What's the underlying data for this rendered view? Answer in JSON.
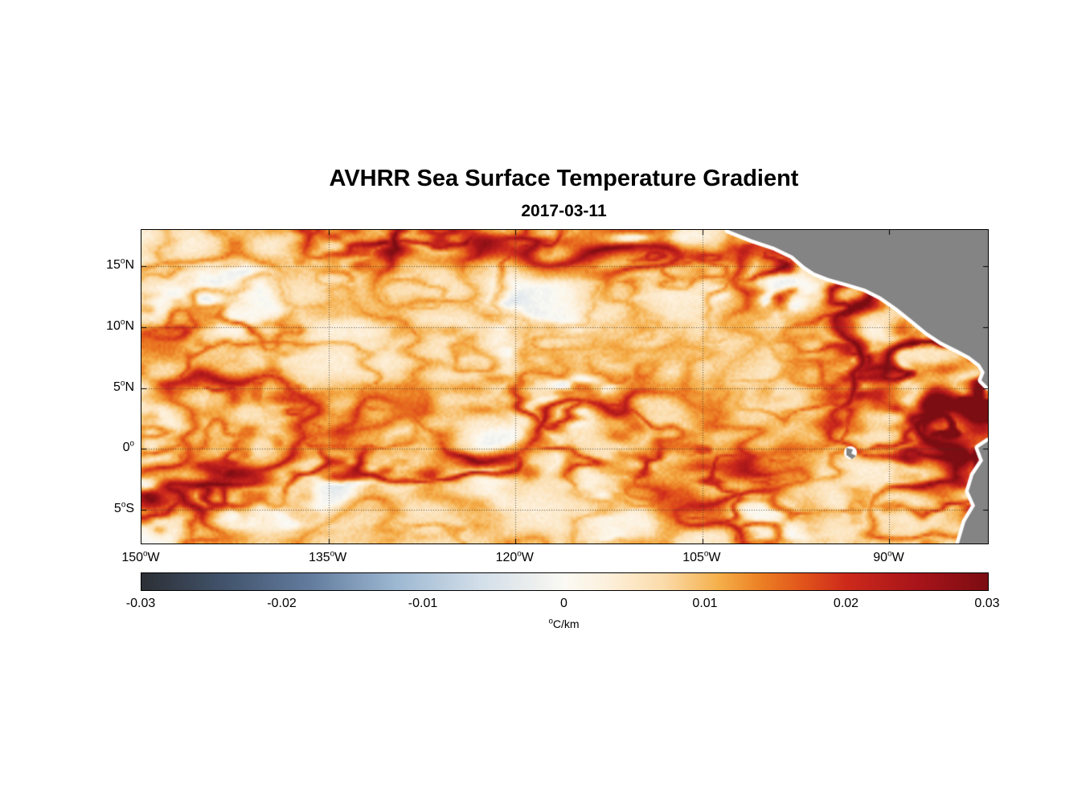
{
  "figure": {
    "title": "AVHRR Sea Surface Temperature Gradient",
    "subtitle": "2017-03-11",
    "background_color": "#ffffff",
    "frame_color": "#000000"
  },
  "degree_symbol": "o",
  "axes": {
    "x_ticks": [
      {
        "deg": -150,
        "num": "150",
        "suffix": "W"
      },
      {
        "deg": -135,
        "num": "135",
        "suffix": "W"
      },
      {
        "deg": -120,
        "num": "120",
        "suffix": "W"
      },
      {
        "deg": -105,
        "num": "105",
        "suffix": "W"
      },
      {
        "deg": -90,
        "num": "90",
        "suffix": "W"
      }
    ],
    "y_ticks": [
      {
        "deg": 15,
        "num": "15",
        "suffix": "N"
      },
      {
        "deg": 10,
        "num": "10",
        "suffix": "N"
      },
      {
        "deg": 5,
        "num": "5",
        "suffix": "N"
      },
      {
        "deg": 0,
        "num": "0",
        "suffix": ""
      },
      {
        "deg": -5,
        "num": "5",
        "suffix": "S"
      }
    ],
    "lon_range": [
      -150,
      -82.1
    ],
    "lat_range": [
      -7.8,
      18
    ],
    "grid_style": "dotted",
    "grid_color": "#3c3832"
  },
  "colorbar": {
    "ticks": [
      {
        "v": -0.03,
        "label": "-0.03"
      },
      {
        "v": -0.02,
        "label": "-0.02"
      },
      {
        "v": -0.01,
        "label": "-0.01"
      },
      {
        "v": 0,
        "label": "0"
      },
      {
        "v": 0.01,
        "label": "0.01"
      },
      {
        "v": 0.02,
        "label": "0.02"
      },
      {
        "v": 0.03,
        "label": "0.03"
      }
    ],
    "range": [
      -0.03,
      0.03
    ],
    "units_degree": "o",
    "units_text": "C/km"
  },
  "map": {
    "land_color": "#848484",
    "coast_halo_color": "#ffffff"
  },
  "chart_data": {
    "type": "heatmap",
    "title": "AVHRR Sea Surface Temperature Gradient",
    "subtitle": "2017-03-11",
    "x_tick_labels": [
      "150°W",
      "135°W",
      "120°W",
      "105°W",
      "90°W"
    ],
    "y_tick_labels": [
      "15°N",
      "10°N",
      "5°N",
      "0°",
      "5°S"
    ],
    "x_range_deg_east": [
      -150,
      -82.1
    ],
    "y_range_deg_north": [
      -7.8,
      18
    ],
    "colorbar_orientation": "horizontal",
    "colorbar_range": [
      -0.03,
      0.03
    ],
    "colorbar_ticks": [
      -0.03,
      -0.02,
      -0.01,
      0,
      0.01,
      0.02,
      0.03
    ],
    "units": "°C/km",
    "grid": "dotted",
    "land_color": "#848484",
    "colormap_stops": [
      [
        -0.03,
        "#2d3036"
      ],
      [
        -0.024,
        "#43556e"
      ],
      [
        -0.018,
        "#647d9f"
      ],
      [
        -0.012,
        "#9db8d2"
      ],
      [
        -0.006,
        "#d3dfe9"
      ],
      [
        -0.002,
        "#eef0ef"
      ],
      [
        0.0,
        "#fbfaf4"
      ],
      [
        0.003,
        "#fdf1dd"
      ],
      [
        0.007,
        "#fbdcab"
      ],
      [
        0.011,
        "#f5af4a"
      ],
      [
        0.014,
        "#ec7f24"
      ],
      [
        0.017,
        "#e1531b"
      ],
      [
        0.02,
        "#cd2a1c"
      ],
      [
        0.025,
        "#a8151a"
      ],
      [
        0.03,
        "#7c0d12"
      ]
    ],
    "field_summary": "Filamentary SST-gradient fronts of 0.01 to 0.03 °C/km (orange to dark red) over a weak-gradient cream background near 0.003 °C/km; strongest gradients along the Central American coast (Tehuantepec/Papagayo region) and the equatorial front near 0-2°S; scattered faint negative patches (pale blue); gray land with white coastal no-data halo; small island near 90°W, 0.5°S."
  }
}
